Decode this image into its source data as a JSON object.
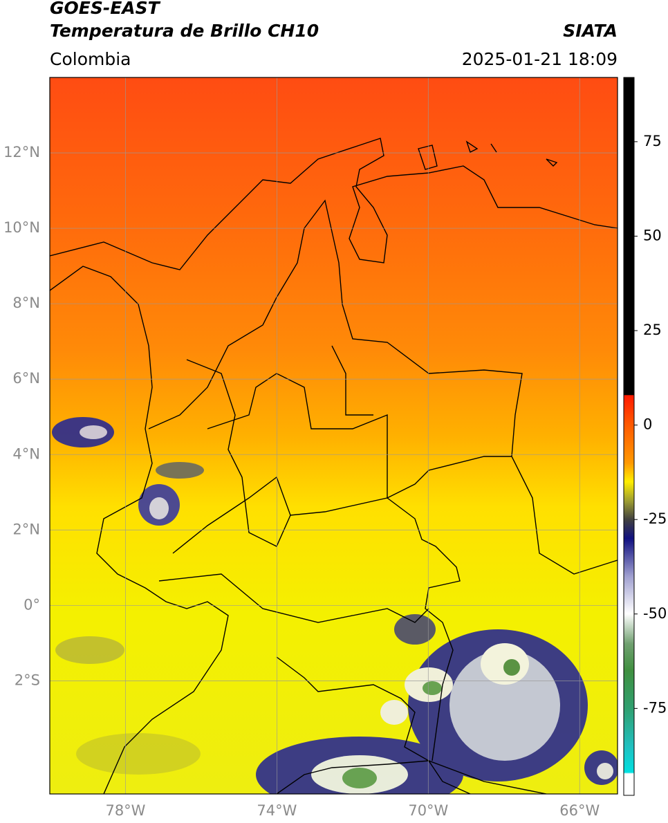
{
  "header": {
    "title": "GOES-EAST",
    "subtitle": "Temperatura de Brillo CH10",
    "source": "SIATA",
    "region": "Colombia",
    "datetime": "2025-01-21 18:09"
  },
  "map": {
    "latlim": [
      -5,
      14
    ],
    "lonlim": [
      -80,
      -65
    ],
    "grid": true,
    "lat_ticks": [
      {
        "value": 12,
        "label": "12°N"
      },
      {
        "value": 10,
        "label": "10°N"
      },
      {
        "value": 8,
        "label": "8°N"
      },
      {
        "value": 6,
        "label": "6°N"
      },
      {
        "value": 4,
        "label": "4°N"
      },
      {
        "value": 2,
        "label": "2°N"
      },
      {
        "value": 0,
        "label": "0°"
      },
      {
        "value": -2,
        "label": "2°S"
      }
    ],
    "lon_ticks": [
      {
        "value": -78,
        "label": "78°W"
      },
      {
        "value": -74,
        "label": "74°W"
      },
      {
        "value": -70,
        "label": "70°W"
      },
      {
        "value": -66,
        "label": "66°W"
      }
    ]
  },
  "colorbar": {
    "lim": [
      -98,
      92
    ],
    "ticks": [
      75,
      50,
      25,
      0,
      -25,
      -50,
      -75
    ]
  }
}
